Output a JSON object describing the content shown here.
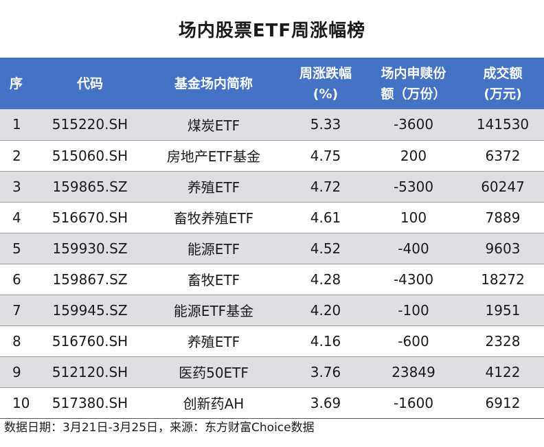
{
  "title": "场内股票ETF周涨幅榜",
  "headers": {
    "seq": "序",
    "code": "代码",
    "name": "基金场内简称",
    "change_line1": "周涨跌幅",
    "change_line2": "(%)",
    "shares_line1": "场内申赎份",
    "shares_line2": "额（万份）",
    "turnover_line1": "成交额",
    "turnover_line2": "(万元)"
  },
  "rows": [
    {
      "seq": "1",
      "code": "515220.SH",
      "name": "煤炭ETF",
      "change": "5.33",
      "shares": "-3600",
      "turnover": "141530"
    },
    {
      "seq": "2",
      "code": "515060.SH",
      "name": "房地产ETF基金",
      "change": "4.75",
      "shares": "200",
      "turnover": "6372"
    },
    {
      "seq": "3",
      "code": "159865.SZ",
      "name": "养殖ETF",
      "change": "4.72",
      "shares": "-5300",
      "turnover": "60247"
    },
    {
      "seq": "4",
      "code": "516670.SH",
      "name": "畜牧养殖ETF",
      "change": "4.61",
      "shares": "100",
      "turnover": "7889"
    },
    {
      "seq": "5",
      "code": "159930.SZ",
      "name": "能源ETF",
      "change": "4.52",
      "shares": "-400",
      "turnover": "9603"
    },
    {
      "seq": "6",
      "code": "159867.SZ",
      "name": "畜牧ETF",
      "change": "4.28",
      "shares": "-4300",
      "turnover": "18272"
    },
    {
      "seq": "7",
      "code": "159945.SZ",
      "name": "能源ETF基金",
      "change": "4.20",
      "shares": "-100",
      "turnover": "1951"
    },
    {
      "seq": "8",
      "code": "516760.SH",
      "name": "养殖ETF",
      "change": "4.16",
      "shares": "-600",
      "turnover": "2328"
    },
    {
      "seq": "9",
      "code": "512120.SH",
      "name": "医药50ETF",
      "change": "3.76",
      "shares": "23849",
      "turnover": "4122"
    },
    {
      "seq": "10",
      "code": "517380.SH",
      "name": "创新药AH",
      "change": "3.69",
      "shares": "-1600",
      "turnover": "6912"
    }
  ],
  "footnote": "数据日期：3月21日-3月25日，来源：东方财富Choice数据",
  "colors": {
    "header_bg": "#4472c4",
    "stripe_bg": "#dfdfe3"
  }
}
